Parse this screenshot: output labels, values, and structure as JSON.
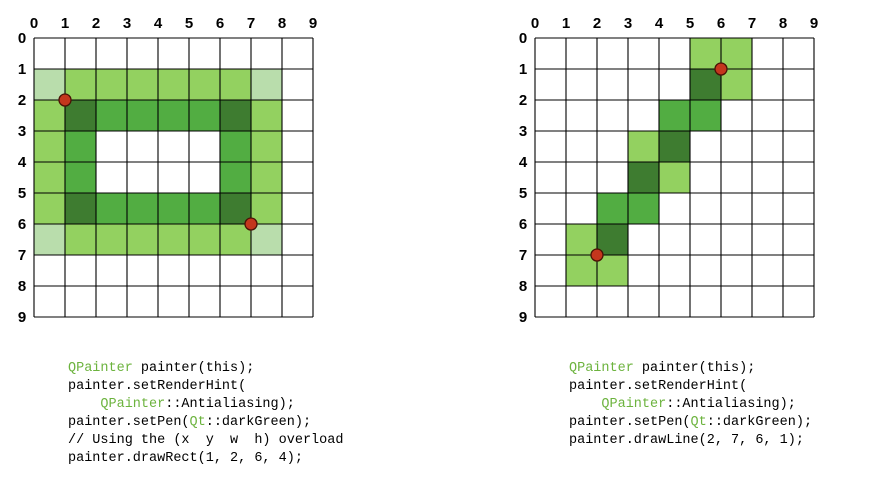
{
  "colors": {
    "pen": "#3e7c30",
    "half": "#52ad42",
    "quarter": "#93d160",
    "corner": "#b9ddac",
    "grid": "#000000",
    "point": "#c4361d",
    "keyword": "#6cb33e"
  },
  "grid_labels": [
    "0",
    "1",
    "2",
    "3",
    "4",
    "5",
    "6",
    "7",
    "8",
    "9"
  ],
  "diagrams": [
    {
      "name": "drawRect",
      "cells": {
        "pen": [
          [
            1,
            2
          ],
          [
            6,
            2
          ],
          [
            1,
            5
          ],
          [
            6,
            5
          ]
        ],
        "half": [
          [
            2,
            2
          ],
          [
            3,
            2
          ],
          [
            4,
            2
          ],
          [
            5,
            2
          ],
          [
            2,
            5
          ],
          [
            3,
            5
          ],
          [
            4,
            5
          ],
          [
            5,
            5
          ],
          [
            1,
            3
          ],
          [
            1,
            4
          ],
          [
            6,
            3
          ],
          [
            6,
            4
          ]
        ],
        "quarter": [
          [
            1,
            1
          ],
          [
            2,
            1
          ],
          [
            3,
            1
          ],
          [
            4,
            1
          ],
          [
            5,
            1
          ],
          [
            6,
            1
          ],
          [
            1,
            6
          ],
          [
            2,
            6
          ],
          [
            3,
            6
          ],
          [
            4,
            6
          ],
          [
            5,
            6
          ],
          [
            6,
            6
          ],
          [
            0,
            2
          ],
          [
            0,
            3
          ],
          [
            0,
            4
          ],
          [
            0,
            5
          ],
          [
            7,
            2
          ],
          [
            7,
            3
          ],
          [
            7,
            4
          ],
          [
            7,
            5
          ]
        ],
        "corner": [
          [
            0,
            1
          ],
          [
            7,
            1
          ],
          [
            0,
            6
          ],
          [
            7,
            6
          ]
        ]
      },
      "points": [
        [
          1,
          2
        ],
        [
          7,
          6
        ]
      ],
      "code": [
        [
          {
            "t": "QPainter",
            "k": true
          },
          {
            "t": " painter(this);"
          }
        ],
        [
          {
            "t": "painter.setRenderHint("
          }
        ],
        [
          {
            "t": "    "
          },
          {
            "t": "QPainter",
            "k": true
          },
          {
            "t": "::Antialiasing);"
          }
        ],
        [
          {
            "t": "painter.setPen("
          },
          {
            "t": "Qt",
            "k": true
          },
          {
            "t": "::darkGreen);"
          }
        ],
        [
          {
            "t": "// Using the (x  y  w  h) overload"
          }
        ],
        [
          {
            "t": "painter.drawRect(1, 2, 6, 4);"
          }
        ]
      ]
    },
    {
      "name": "drawLine",
      "cells": {
        "pen": [
          [
            5,
            1
          ],
          [
            4,
            3
          ],
          [
            3,
            4
          ],
          [
            2,
            6
          ]
        ],
        "half": [
          [
            4,
            2
          ],
          [
            5,
            2
          ],
          [
            3,
            5
          ],
          [
            2,
            5
          ]
        ],
        "quarter": [
          [
            5,
            0
          ],
          [
            6,
            0
          ],
          [
            6,
            1
          ],
          [
            3,
            3
          ],
          [
            4,
            4
          ],
          [
            1,
            6
          ],
          [
            1,
            7
          ],
          [
            2,
            7
          ]
        ],
        "corner": []
      },
      "points": [
        [
          2,
          7
        ],
        [
          6,
          1
        ]
      ],
      "code": [
        [
          {
            "t": "QPainter",
            "k": true
          },
          {
            "t": " painter(this);"
          }
        ],
        [
          {
            "t": "painter.setRenderHint("
          }
        ],
        [
          {
            "t": "    "
          },
          {
            "t": "QPainter",
            "k": true
          },
          {
            "t": "::Antialiasing);"
          }
        ],
        [
          {
            "t": "painter.setPen("
          },
          {
            "t": "Qt",
            "k": true
          },
          {
            "t": "::darkGreen);"
          }
        ],
        [
          {
            "t": "painter.drawLine(2, 7, 6, 1);"
          }
        ]
      ]
    }
  ]
}
